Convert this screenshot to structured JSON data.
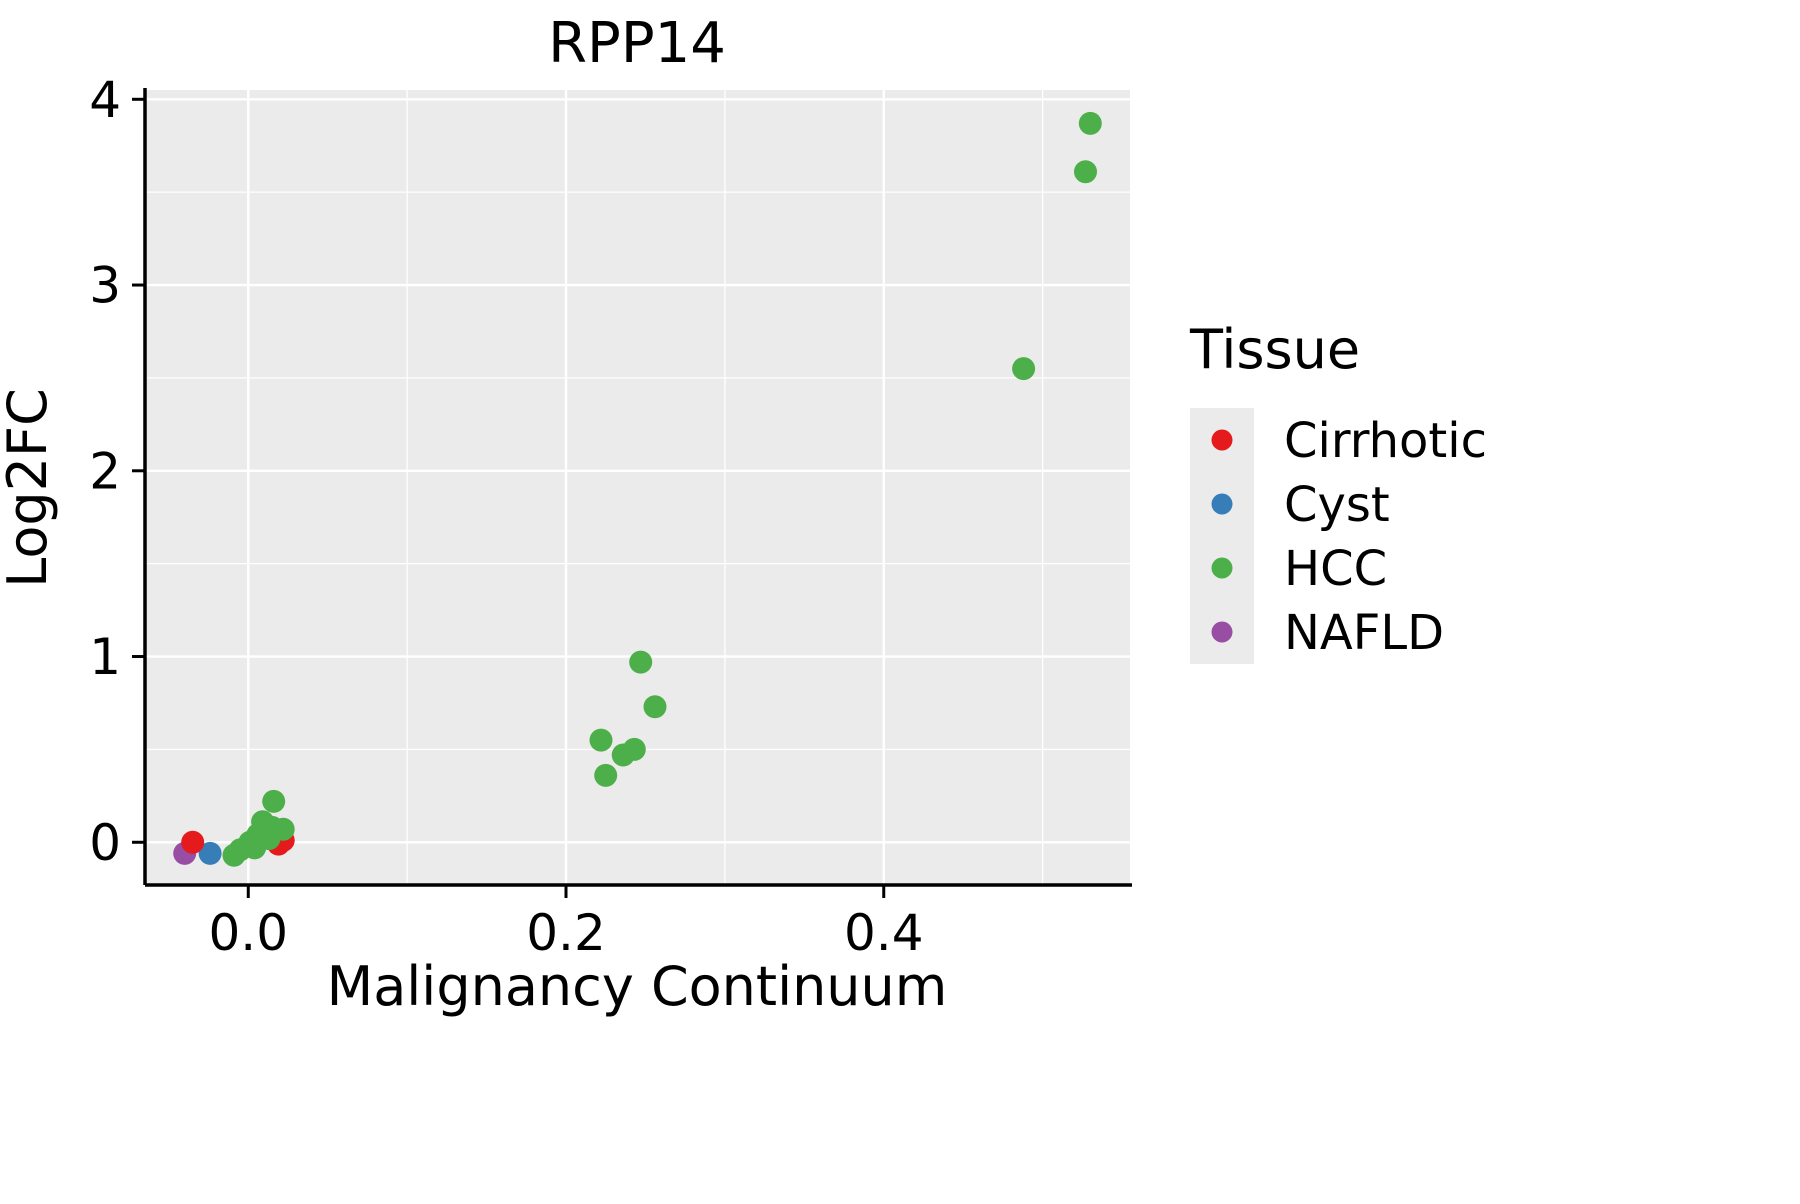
{
  "chart_data": {
    "type": "scatter",
    "title": "RPP14",
    "xlabel": "Malignancy Continuum",
    "ylabel": "Log2FC",
    "legend_title": "Tissue",
    "legend_position": "right",
    "grid": true,
    "panel_color": "#EBEBEB",
    "xlim": [
      -0.065,
      0.555
    ],
    "ylim": [
      -0.23,
      4.05
    ],
    "xticks": [
      0.0,
      0.2,
      0.4
    ],
    "xtick_labels": [
      "0.0",
      "0.2",
      "0.4"
    ],
    "yticks": [
      0,
      1,
      2,
      3,
      4
    ],
    "ytick_labels": [
      "0",
      "1",
      "2",
      "3",
      "4"
    ],
    "series": [
      {
        "name": "Cirrhotic",
        "color": "#E41A1C",
        "points": [
          [
            -0.035,
            0.0
          ],
          [
            0.019,
            -0.01
          ],
          [
            0.022,
            0.01
          ]
        ]
      },
      {
        "name": "Cyst",
        "color": "#377EB8",
        "points": [
          [
            -0.024,
            -0.06
          ]
        ]
      },
      {
        "name": "HCC",
        "color": "#4DAF4A",
        "points": [
          [
            0.53,
            3.87
          ],
          [
            0.527,
            3.61
          ],
          [
            0.488,
            2.55
          ],
          [
            0.247,
            0.97
          ],
          [
            0.256,
            0.73
          ],
          [
            0.222,
            0.55
          ],
          [
            0.243,
            0.5
          ],
          [
            0.236,
            0.47
          ],
          [
            0.225,
            0.36
          ],
          [
            0.016,
            0.22
          ],
          [
            0.009,
            0.11
          ],
          [
            0.015,
            0.08
          ],
          [
            0.022,
            0.07
          ],
          [
            0.006,
            0.04
          ],
          [
            0.013,
            0.02
          ],
          [
            0.001,
            0.0
          ],
          [
            -0.005,
            -0.04
          ],
          [
            0.004,
            -0.03
          ],
          [
            -0.009,
            -0.07
          ]
        ]
      },
      {
        "name": "NAFLD",
        "color": "#984EA3",
        "points": [
          [
            -0.04,
            -0.06
          ]
        ]
      }
    ]
  }
}
